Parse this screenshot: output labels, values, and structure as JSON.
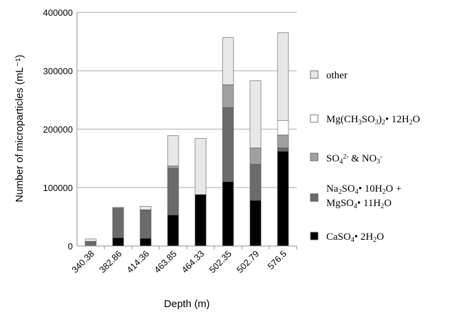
{
  "chart_data": {
    "type": "bar",
    "stacked": true,
    "xlabel": "Depth (m)",
    "ylabel": "Number of microparticles (mL⁻¹)",
    "ylim": [
      0,
      400000
    ],
    "yticks": [
      "0",
      "100000",
      "200000",
      "300000",
      "400000"
    ],
    "categories": [
      "340.38",
      "382.86",
      "414.36",
      "463.85",
      "464.33",
      "502.35",
      "502.79",
      "576.5"
    ],
    "grid": "horizontal",
    "legend_position": "right",
    "series": [
      {
        "name": "CaSO₄• 2H₂O",
        "color": "#000000",
        "values": [
          0,
          14000,
          13000,
          53000,
          88000,
          110000,
          78000,
          162000
        ]
      },
      {
        "name": "Na₂SO₄• 10H₂O + MgSO₄• 11H₂O",
        "color": "#6b6b6b",
        "values": [
          7000,
          51000,
          48000,
          80000,
          0,
          127000,
          62000,
          6000
        ]
      },
      {
        "name": "SO₄²⁻ & NO₃⁻",
        "color": "#a0a0a0",
        "values": [
          1000,
          0,
          1000,
          4000,
          0,
          39000,
          28000,
          22000
        ]
      },
      {
        "name": "Mg(CH₃SO₃)₂• 12H₂O",
        "color": "#ffffff",
        "values": [
          0,
          0,
          0,
          0,
          0,
          0,
          0,
          25000
        ]
      },
      {
        "name": "other",
        "color": "#e8e8e8",
        "values": [
          4000,
          1000,
          6000,
          52000,
          96000,
          81000,
          115000,
          150000
        ]
      }
    ],
    "legend_order": [
      4,
      3,
      2,
      1,
      0
    ]
  }
}
